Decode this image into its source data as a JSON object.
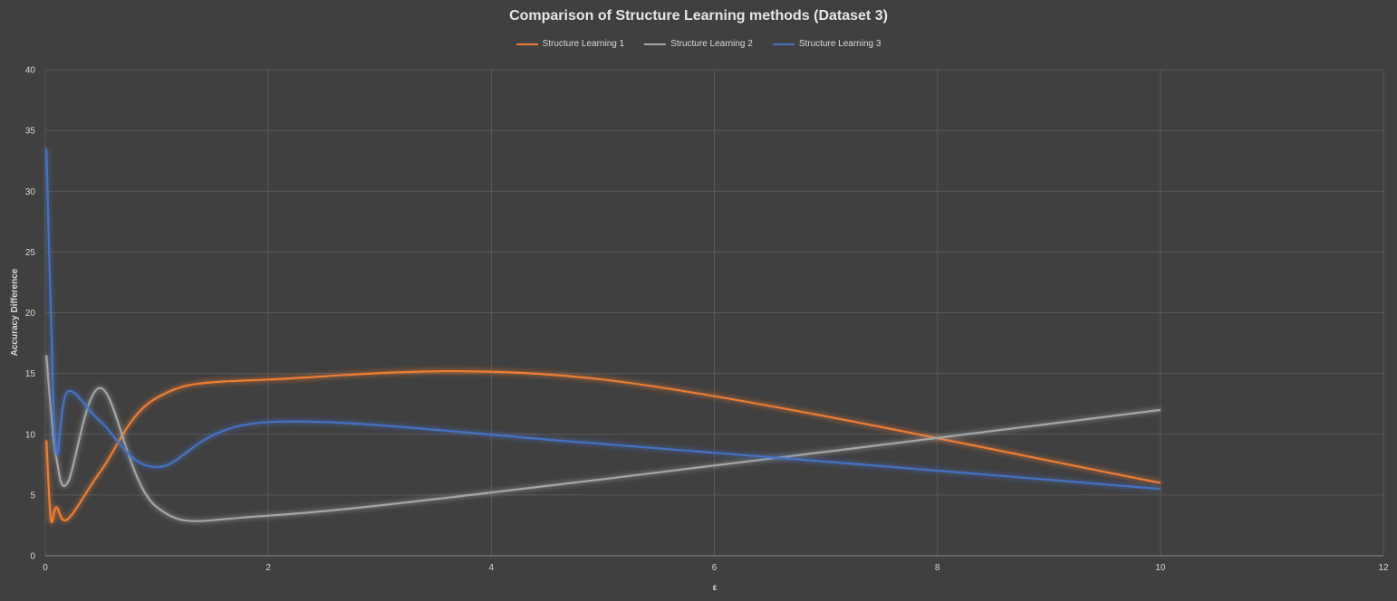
{
  "chart_data": {
    "type": "line",
    "title": "Comparison of Structure Learning methods (Dataset 3)",
    "xlabel": "ε",
    "ylabel": "Accuracy Difference",
    "xlim": [
      0,
      12
    ],
    "ylim": [
      0,
      40
    ],
    "xticks": [
      0,
      2,
      4,
      6,
      8,
      10,
      12
    ],
    "yticks": [
      0,
      5,
      10,
      15,
      20,
      25,
      30,
      35,
      40
    ],
    "grid": true,
    "legend_position": "top",
    "series": [
      {
        "name": "Structure Learning 1",
        "color": "#ed7d31",
        "x": [
          0.01,
          0.05,
          0.1,
          0.2,
          0.5,
          1,
          2,
          5,
          10
        ],
        "y": [
          9.5,
          3.0,
          4.0,
          3.0,
          7.0,
          13.0,
          14.5,
          14.5,
          6.0
        ]
      },
      {
        "name": "Structure Learning 2",
        "color": "#a5a5a5",
        "x": [
          0.01,
          0.05,
          0.1,
          0.2,
          0.5,
          1,
          2,
          5,
          10
        ],
        "y": [
          16.5,
          12.0,
          8.0,
          6.0,
          13.8,
          4.0,
          3.3,
          6.3,
          12.0
        ]
      },
      {
        "name": "Structure Learning 3",
        "color": "#4472c4",
        "x": [
          0.01,
          0.05,
          0.1,
          0.2,
          0.5,
          1,
          2,
          5,
          10
        ],
        "y": [
          33.5,
          20.0,
          8.5,
          13.5,
          11.0,
          7.3,
          11.0,
          9.2,
          5.5
        ]
      }
    ]
  }
}
